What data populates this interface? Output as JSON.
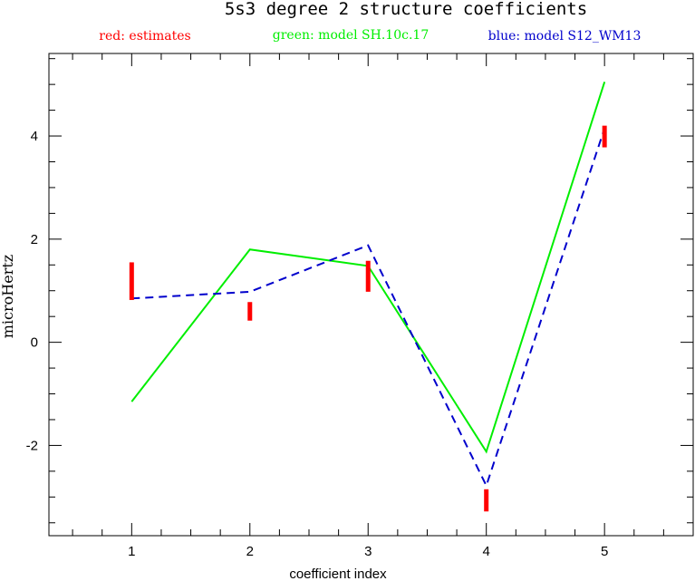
{
  "chart_data": {
    "type": "line",
    "title": "5s3 degree 2 structure coefficients",
    "xlabel": "coefficient index",
    "ylabel": "microHertz",
    "xlim": [
      0.3,
      5.75
    ],
    "ylim": [
      -3.75,
      5.6
    ],
    "x_ticks": [
      1,
      2,
      3,
      4,
      5
    ],
    "y_ticks": [
      -2,
      0,
      2,
      4
    ],
    "x_minor_step": 0.25,
    "y_minor_step": 0.5,
    "grid": false,
    "legend": [
      {
        "label": "red: estimates",
        "color": "#ff0000"
      },
      {
        "label": "green: model SH.10c.17",
        "color": "#00ee00"
      },
      {
        "label": "blue: model S12_WM13",
        "color": "#0000cc"
      }
    ],
    "estimates": {
      "name": "",
      "color": "#ff0000",
      "x": [
        1,
        2,
        3,
        4,
        5
      ],
      "low": [
        0.82,
        0.42,
        0.98,
        -3.28,
        3.78
      ],
      "high": [
        1.55,
        0.78,
        1.58,
        -2.85,
        4.2
      ]
    },
    "series": [
      {
        "name": "",
        "color": "#00ee00",
        "style": "solid",
        "x": [
          1,
          2,
          3,
          4,
          5
        ],
        "values": [
          -1.15,
          1.8,
          1.48,
          -2.12,
          5.05
        ]
      },
      {
        "name": "",
        "color": "#0000cc",
        "style": "dashed",
        "x": [
          1,
          2,
          3,
          4,
          5
        ],
        "values": [
          0.85,
          0.98,
          1.88,
          -2.78,
          4.15
        ]
      }
    ]
  }
}
